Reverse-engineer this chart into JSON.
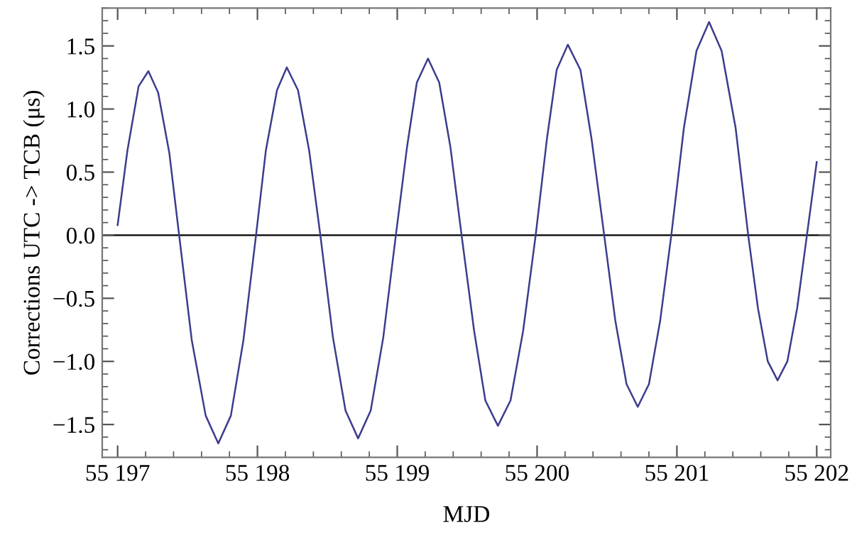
{
  "chart_data": {
    "type": "line",
    "xlabel": "MJD",
    "ylabel": "Corrections UTC -> TCB (μs)",
    "series": [
      {
        "color": "#3c3c8e",
        "x": [
          55197.0,
          55197.07,
          55197.15,
          55197.22,
          55197.29,
          55197.37,
          55197.44,
          55197.53,
          55197.63,
          55197.72,
          55197.81,
          55197.9,
          55197.99,
          55198.06,
          55198.14,
          55198.21,
          55198.29,
          55198.37,
          55198.45,
          55198.54,
          55198.63,
          55198.72,
          55198.81,
          55198.9,
          55198.99,
          55199.07,
          55199.14,
          55199.22,
          55199.3,
          55199.38,
          55199.46,
          55199.55,
          55199.63,
          55199.72,
          55199.81,
          55199.9,
          55199.99,
          55200.07,
          55200.14,
          55200.22,
          55200.31,
          55200.39,
          55200.48,
          55200.56,
          55200.64,
          55200.72,
          55200.8,
          55200.88,
          55200.96,
          55201.05,
          55201.14,
          55201.23,
          55201.32,
          55201.42,
          55201.51,
          55201.58,
          55201.65,
          55201.72,
          55201.79,
          55201.86,
          55201.93,
          55202.0
        ],
        "values": [
          0.08,
          0.67,
          1.18,
          1.3,
          1.13,
          0.65,
          0.0,
          -0.83,
          -1.43,
          -1.65,
          -1.43,
          -0.83,
          0.0,
          0.67,
          1.15,
          1.33,
          1.15,
          0.67,
          0.0,
          -0.81,
          -1.39,
          -1.61,
          -1.39,
          -0.81,
          0.0,
          0.7,
          1.21,
          1.4,
          1.21,
          0.7,
          0.0,
          -0.76,
          -1.31,
          -1.51,
          -1.31,
          -0.76,
          0.0,
          0.76,
          1.31,
          1.51,
          1.31,
          0.76,
          0.0,
          -0.68,
          -1.18,
          -1.36,
          -1.18,
          -0.68,
          0.0,
          0.85,
          1.46,
          1.69,
          1.46,
          0.85,
          0.0,
          -0.58,
          -1.0,
          -1.15,
          -1.0,
          -0.58,
          0.0,
          0.58
        ]
      }
    ],
    "xlim": [
      55196.89,
      55202.1
    ],
    "ylim": [
      -1.76,
      1.8
    ],
    "xticks": [
      {
        "value": 55197,
        "label": "55 197"
      },
      {
        "value": 55198,
        "label": "55 198"
      },
      {
        "value": 55199,
        "label": "55 199"
      },
      {
        "value": 55200,
        "label": "55 200"
      },
      {
        "value": 55201,
        "label": "55 201"
      },
      {
        "value": 55202,
        "label": "55 202"
      }
    ],
    "yticks": [
      {
        "value": -1.5,
        "label": "−1.5"
      },
      {
        "value": -1.0,
        "label": "−1.0"
      },
      {
        "value": -0.5,
        "label": "−0.5"
      },
      {
        "value": 0.0,
        "label": "0.0"
      },
      {
        "value": 0.5,
        "label": "0.5"
      },
      {
        "value": 1.0,
        "label": "1.0"
      },
      {
        "value": 1.5,
        "label": "1.5"
      }
    ],
    "ref_lines": [
      {
        "axis": "y",
        "value": 0,
        "color": "#000000"
      }
    ],
    "grid": false,
    "legend": false,
    "marker": "none",
    "line_style": "solid"
  }
}
